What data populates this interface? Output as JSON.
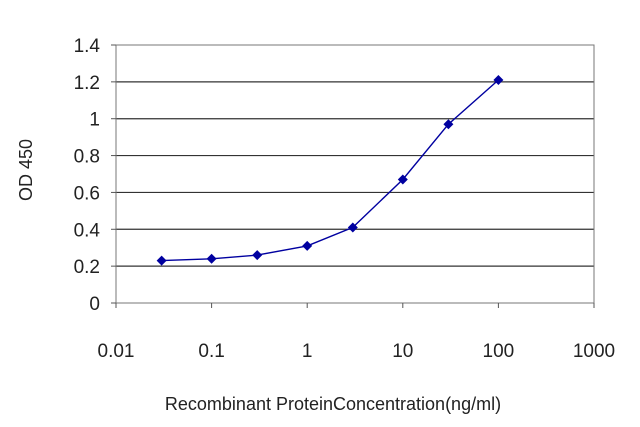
{
  "chart_data": {
    "type": "line",
    "title": "",
    "xlabel": "Recombinant ProteinConcentration(ng/ml)",
    "ylabel": "OD 450",
    "x_scale": "log",
    "xlim": [
      0.01,
      1000
    ],
    "ylim": [
      0,
      1.4
    ],
    "x_ticks": [
      0.01,
      0.1,
      1,
      10,
      100,
      1000
    ],
    "x_tick_labels": [
      "0.01",
      "0.1",
      "1",
      "10",
      "100",
      "1000"
    ],
    "y_ticks": [
      0,
      0.2,
      0.4,
      0.6,
      0.8,
      1,
      1.2,
      1.4
    ],
    "y_tick_labels": [
      "0",
      "0.2",
      "0.4",
      "0.6",
      "0.8",
      "1",
      "1.2",
      "1.4"
    ],
    "grid": "horizontal",
    "legend": "none",
    "series": [
      {
        "x": [
          0.03,
          0.1,
          0.3,
          1,
          3,
          10,
          30,
          100
        ],
        "y": [
          0.23,
          0.24,
          0.26,
          0.31,
          0.41,
          0.67,
          0.97,
          1.21
        ],
        "color": "#0000a0"
      }
    ]
  }
}
